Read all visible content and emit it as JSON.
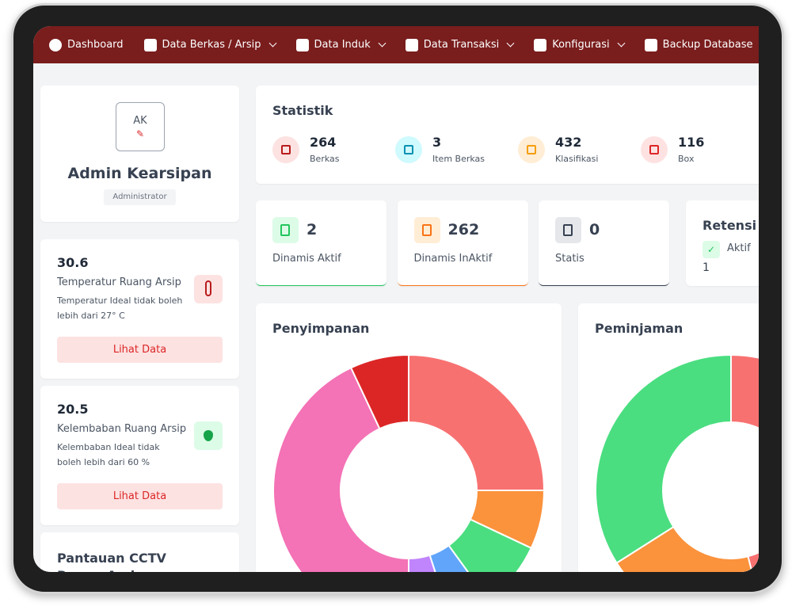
{
  "nav": [
    "Dashboard",
    "Data Berkas / Arsip",
    "Data Induk",
    "Data Transaksi",
    "Konfigurasi",
    "Backup Database"
  ],
  "profile": {
    "initials": "AK",
    "name": "Admin Kearsipan",
    "role": "Administrator"
  },
  "sensors": [
    {
      "value": 30.6,
      "title": "Temperatur Ruang Arsip",
      "note": "Temperatur Ideal tidak boleh lebih dari 27° C",
      "button": "Lihat Data"
    },
    {
      "value": 20.5,
      "title": "Kelembaban Ruang Arsip",
      "note": "Kelembaban Ideal tidak boleh lebih dari 60 %",
      "button": "Lihat Data"
    }
  ],
  "cctv_title": "Pantauan CCTV Ruang Arsip",
  "statistik": {
    "title": "Statistik",
    "items": [
      {
        "value": 264,
        "label": "Berkas",
        "color": "#b91c1c",
        "bg": "#fde2e2"
      },
      {
        "value": 3,
        "label": "Item Berkas",
        "color": "#0891b2",
        "bg": "#cffafe"
      },
      {
        "value": 432,
        "label": "Klasifikasi",
        "color": "#f59e0b",
        "bg": "#ffedd5"
      },
      {
        "value": 116,
        "label": "Box",
        "color": "#dc2626",
        "bg": "#fee2e2"
      }
    ]
  },
  "status_cards": [
    {
      "value": 2,
      "label": "Dinamis Aktif",
      "color": "#22c55e",
      "bg": "#dcfce7"
    },
    {
      "value": 262,
      "label": "Dinamis InAktif",
      "color": "#f97316",
      "bg": "#ffedd5"
    },
    {
      "value": 0,
      "label": "Statis",
      "color": "#374151",
      "bg": "#e5e7eb"
    }
  ],
  "retensi": {
    "title": "Retensi H",
    "label": "Aktif",
    "value": 1
  },
  "charts": [
    {
      "type": "donut",
      "title": "Penyimpanan",
      "values": [
        25,
        7,
        8,
        5,
        5,
        43,
        7
      ],
      "colors": [
        "#f87171",
        "#fb923c",
        "#4ade80",
        "#60a5fa",
        "#c084fc",
        "#f472b6",
        "#dc2626"
      ]
    },
    {
      "type": "donut",
      "title": "Peminjaman",
      "values": [
        46,
        20,
        34
      ],
      "colors": [
        "#f87171",
        "#fb923c",
        "#4ade80"
      ]
    }
  ]
}
